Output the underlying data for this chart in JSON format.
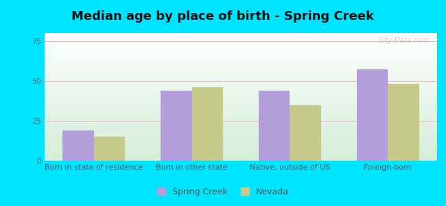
{
  "title": "Median age by place of birth - Spring Creek",
  "categories": [
    "Born in state of residence",
    "Born in other state",
    "Native, outside of US",
    "Foreign-born"
  ],
  "spring_creek_values": [
    19,
    44,
    44,
    57
  ],
  "nevada_values": [
    15,
    46,
    35,
    48
  ],
  "spring_creek_color": "#b39ddb",
  "nevada_color": "#c5c98a",
  "ylim": [
    0,
    80
  ],
  "yticks": [
    0,
    25,
    50,
    75
  ],
  "bar_width": 0.32,
  "background_outer": "#00e5ff",
  "grid_color": "#e8b4c0",
  "legend_labels": [
    "Spring Creek",
    "Nevada"
  ],
  "title_fontsize": 13,
  "tick_fontsize": 8,
  "legend_fontsize": 9,
  "watermark": "City-Data.com"
}
